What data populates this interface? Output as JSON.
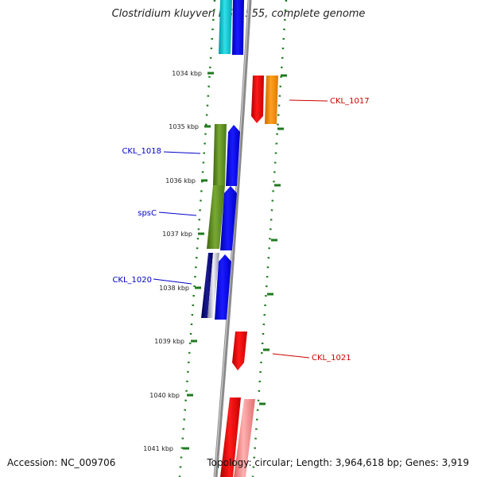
{
  "title": "Clostridium kluyveri DSM 555, complete genome",
  "accession_text": "Accession: NC_009706",
  "topology_text": "Topology: circular; Length: 3,964,618 bp; Genes: 3,919",
  "tick_labels": [
    "1034 kbp",
    "1035 kbp",
    "1036 kbp",
    "1037 kbp",
    "1038 kbp",
    "1039 kbp",
    "1040 kbp",
    "1041 kbp"
  ],
  "gene_labels": [
    {
      "text": "CKL_1017",
      "color": "#cc0000"
    },
    {
      "text": "CKL_1018",
      "color": "#0000cc"
    },
    {
      "text": "spsC",
      "color": "#0000cc"
    },
    {
      "text": "CKL_1020",
      "color": "#0000cc"
    },
    {
      "text": "CKL_1021",
      "color": "#cc0000"
    }
  ],
  "colors": {
    "backbone": "#8a8a8a",
    "ticks": "#1f7a1f",
    "blue": "#0000ee",
    "cyan": "#00c8d2",
    "red": "#ee0000",
    "orange": "#ff8c00",
    "olive": "#5a8a1e",
    "navy": "#000080",
    "light_red": "#f08080"
  }
}
